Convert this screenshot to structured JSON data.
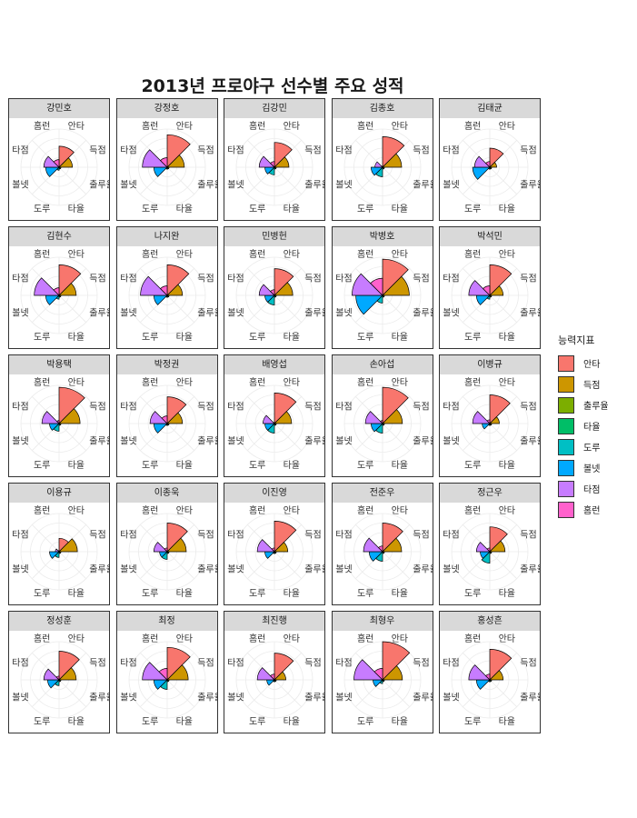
{
  "chart_data": {
    "type": "radar",
    "title": "2013년 프로야구 선수별 주요 성적",
    "axes": [
      "안타",
      "득점",
      "출루율",
      "타율",
      "도루",
      "볼넷",
      "타점",
      "홈런"
    ],
    "legend_title": "능력지표",
    "legend_position": "right",
    "colors": {
      "안타": "#F8766D",
      "득점": "#CD9600",
      "출루율": "#7CAE00",
      "타율": "#00BE67",
      "도루": "#00BFC4",
      "볼넷": "#00A9FF",
      "타점": "#C77CFF",
      "홈런": "#FF61CC"
    },
    "panels": [
      {
        "name": "강민호",
        "values": [
          0.55,
          0.35,
          0.05,
          0.05,
          0.08,
          0.35,
          0.4,
          0.2
        ]
      },
      {
        "name": "강정호",
        "values": [
          0.85,
          0.45,
          0.05,
          0.05,
          0.05,
          0.35,
          0.65,
          0.25
        ]
      },
      {
        "name": "김강민",
        "values": [
          0.65,
          0.38,
          0.05,
          0.05,
          0.2,
          0.25,
          0.4,
          0.15
        ]
      },
      {
        "name": "김종호",
        "values": [
          0.8,
          0.5,
          0.05,
          0.05,
          0.25,
          0.3,
          0.2,
          0.03
        ]
      },
      {
        "name": "김태균",
        "values": [
          0.5,
          0.18,
          0.05,
          0.05,
          0.05,
          0.45,
          0.4,
          0.15
        ]
      },
      {
        "name": "김현수",
        "values": [
          0.8,
          0.45,
          0.05,
          0.05,
          0.1,
          0.35,
          0.65,
          0.2
        ]
      },
      {
        "name": "나지완",
        "values": [
          0.8,
          0.4,
          0.05,
          0.05,
          0.05,
          0.35,
          0.7,
          0.25
        ]
      },
      {
        "name": "민병헌",
        "values": [
          0.7,
          0.48,
          0.05,
          0.05,
          0.25,
          0.25,
          0.4,
          0.15
        ]
      },
      {
        "name": "박병호",
        "values": [
          0.95,
          0.7,
          0.05,
          0.05,
          0.2,
          0.7,
          0.8,
          0.45
        ]
      },
      {
        "name": "박석민",
        "values": [
          0.8,
          0.35,
          0.05,
          0.05,
          0.1,
          0.35,
          0.55,
          0.25
        ]
      },
      {
        "name": "박용택",
        "values": [
          0.95,
          0.55,
          0.05,
          0.05,
          0.2,
          0.25,
          0.45,
          0.08
        ]
      },
      {
        "name": "박정권",
        "values": [
          0.7,
          0.4,
          0.05,
          0.05,
          0.05,
          0.35,
          0.45,
          0.2
        ]
      },
      {
        "name": "배영섭",
        "values": [
          0.8,
          0.45,
          0.05,
          0.05,
          0.25,
          0.25,
          0.3,
          0.03
        ]
      },
      {
        "name": "손아섭",
        "values": [
          0.95,
          0.52,
          0.05,
          0.05,
          0.25,
          0.3,
          0.45,
          0.08
        ]
      },
      {
        "name": "이병규",
        "values": [
          0.75,
          0.25,
          0.05,
          0.05,
          0.05,
          0.2,
          0.45,
          0.1
        ]
      },
      {
        "name": "이용규",
        "values": [
          0.35,
          0.48,
          0.05,
          0.05,
          0.15,
          0.25,
          0.1,
          0.03
        ]
      },
      {
        "name": "이종욱",
        "values": [
          0.75,
          0.5,
          0.05,
          0.05,
          0.2,
          0.2,
          0.35,
          0.1
        ]
      },
      {
        "name": "이진영",
        "values": [
          0.8,
          0.35,
          0.05,
          0.05,
          0.05,
          0.25,
          0.45,
          0.1
        ]
      },
      {
        "name": "전준우",
        "values": [
          0.75,
          0.5,
          0.05,
          0.05,
          0.25,
          0.35,
          0.5,
          0.15
        ]
      },
      {
        "name": "정근우",
        "values": [
          0.65,
          0.4,
          0.05,
          0.05,
          0.3,
          0.25,
          0.35,
          0.1
        ]
      },
      {
        "name": "정성훈",
        "values": [
          0.75,
          0.45,
          0.05,
          0.05,
          0.15,
          0.3,
          0.4,
          0.1
        ]
      },
      {
        "name": "최정",
        "values": [
          0.85,
          0.55,
          0.05,
          0.05,
          0.25,
          0.35,
          0.65,
          0.3
        ]
      },
      {
        "name": "최진행",
        "values": [
          0.7,
          0.3,
          0.05,
          0.05,
          0.05,
          0.2,
          0.45,
          0.15
        ]
      },
      {
        "name": "최형우",
        "values": [
          1.0,
          0.52,
          0.05,
          0.05,
          0.1,
          0.25,
          0.75,
          0.3
        ]
      },
      {
        "name": "홍성흔",
        "values": [
          0.8,
          0.35,
          0.05,
          0.05,
          0.05,
          0.35,
          0.55,
          0.15
        ]
      }
    ]
  }
}
